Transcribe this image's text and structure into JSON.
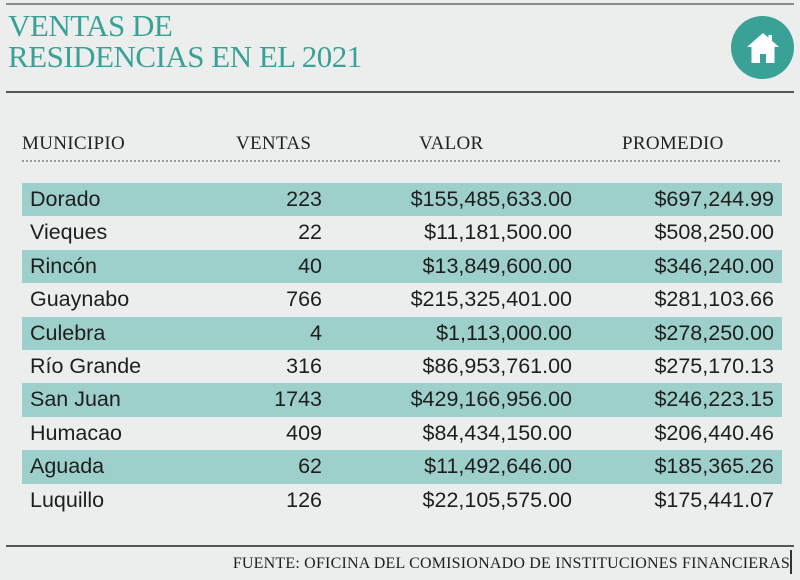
{
  "header": {
    "title_line1": "VENTAS DE",
    "title_line2": "RESIDENCIAS EN EL 2021",
    "icon": "home-icon",
    "accent_color": "#3aa196"
  },
  "table": {
    "columns": [
      "MUNICIPIO",
      "VENTAS",
      "VALOR",
      "PROMEDIO"
    ],
    "row_shade_color": "#9ed0cb",
    "rows": [
      {
        "municipio": "Dorado",
        "ventas": "223",
        "valor": "$155,485,633.00",
        "promedio": "$697,244.99"
      },
      {
        "municipio": "Vieques",
        "ventas": "22",
        "valor": "$11,181,500.00",
        "promedio": "$508,250.00"
      },
      {
        "municipio": "Rincón",
        "ventas": "40",
        "valor": "$13,849,600.00",
        "promedio": "$346,240.00"
      },
      {
        "municipio": "Guaynabo",
        "ventas": "766",
        "valor": "$215,325,401.00",
        "promedio": "$281,103.66"
      },
      {
        "municipio": "Culebra",
        "ventas": "4",
        "valor": "$1,113,000.00",
        "promedio": "$278,250.00"
      },
      {
        "municipio": "Río Grande",
        "ventas": "316",
        "valor": "$86,953,761.00",
        "promedio": "$275,170.13"
      },
      {
        "municipio": "San Juan",
        "ventas": "1743",
        "valor": "$429,166,956.00",
        "promedio": "$246,223.15"
      },
      {
        "municipio": "Humacao",
        "ventas": "409",
        "valor": "$84,434,150.00",
        "promedio": "$206,440.46"
      },
      {
        "municipio": "Aguada",
        "ventas": "62",
        "valor": "$11,492,646.00",
        "promedio": "$185,365.26"
      },
      {
        "municipio": "Luquillo",
        "ventas": "126",
        "valor": "$22,105,575.00",
        "promedio": "$175,441.07"
      }
    ]
  },
  "footer": {
    "source": "FUENTE: OFICINA DEL COMISIONADO DE INSTITUCIONES FINANCIERAS"
  }
}
